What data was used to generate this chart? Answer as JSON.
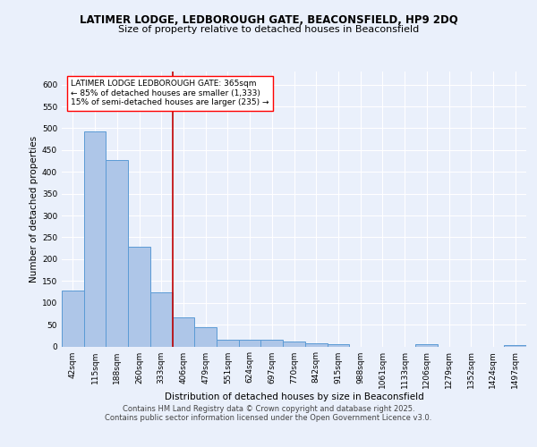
{
  "title": "LATIMER LODGE, LEDBOROUGH GATE, BEACONSFIELD, HP9 2DQ",
  "subtitle": "Size of property relative to detached houses in Beaconsfield",
  "xlabel": "Distribution of detached houses by size in Beaconsfield",
  "ylabel": "Number of detached properties",
  "categories": [
    "42sqm",
    "115sqm",
    "188sqm",
    "260sqm",
    "333sqm",
    "406sqm",
    "479sqm",
    "551sqm",
    "624sqm",
    "697sqm",
    "770sqm",
    "842sqm",
    "915sqm",
    "988sqm",
    "1061sqm",
    "1133sqm",
    "1206sqm",
    "1279sqm",
    "1352sqm",
    "1424sqm",
    "1497sqm"
  ],
  "values": [
    128,
    493,
    428,
    228,
    124,
    67,
    44,
    16,
    16,
    15,
    12,
    7,
    5,
    0,
    0,
    0,
    5,
    0,
    0,
    0,
    4
  ],
  "bar_color": "#aec6e8",
  "bar_edge_color": "#5b9bd5",
  "red_line_x": 4.5,
  "annotation_text": "LATIMER LODGE LEDBOROUGH GATE: 365sqm\n← 85% of detached houses are smaller (1,333)\n15% of semi-detached houses are larger (235) →",
  "annotation_box_color": "white",
  "annotation_box_edge_color": "red",
  "red_line_color": "#c00000",
  "ylim": [
    0,
    630
  ],
  "yticks": [
    0,
    50,
    100,
    150,
    200,
    250,
    300,
    350,
    400,
    450,
    500,
    550,
    600
  ],
  "footer1": "Contains HM Land Registry data © Crown copyright and database right 2025.",
  "footer2": "Contains public sector information licensed under the Open Government Licence v3.0.",
  "background_color": "#eaf0fb",
  "plot_bg_color": "#eaf0fb",
  "grid_color": "#ffffff",
  "title_fontsize": 8.5,
  "subtitle_fontsize": 8,
  "label_fontsize": 7.5,
  "tick_fontsize": 6.5,
  "annotation_fontsize": 6.5,
  "footer_fontsize": 6
}
